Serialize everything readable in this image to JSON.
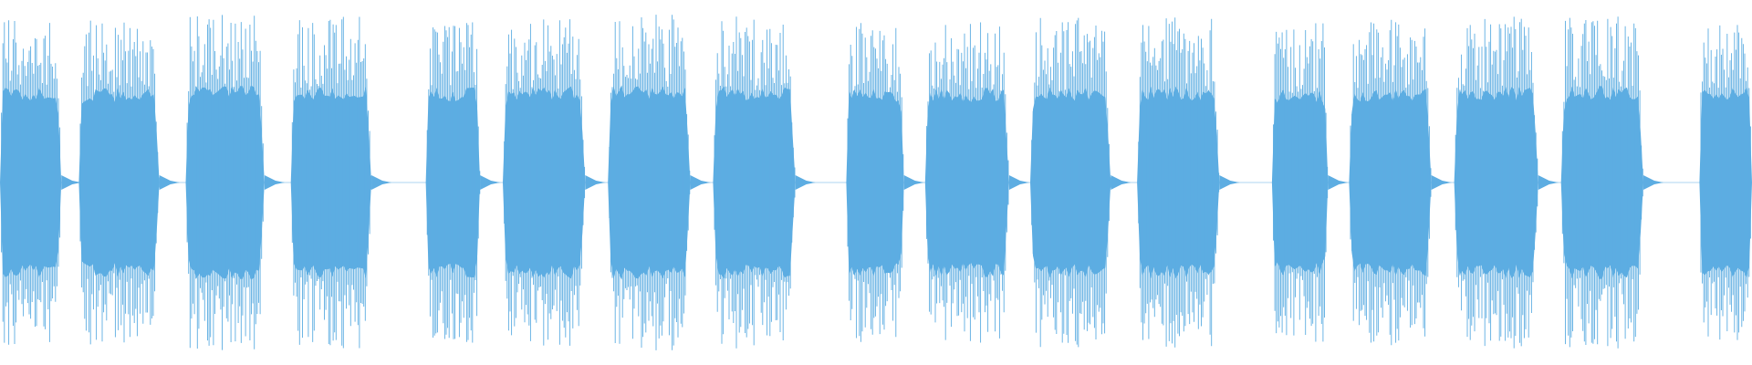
{
  "waveform": {
    "color": "#5dade2",
    "background": "#ffffff",
    "channels": 1,
    "bursts": [
      {
        "start": 0.0,
        "end": 0.035,
        "peak": 0.95
      },
      {
        "start": 0.045,
        "end": 0.091,
        "peak": 0.94
      },
      {
        "start": 0.106,
        "end": 0.151,
        "peak": 0.97
      },
      {
        "start": 0.166,
        "end": 0.212,
        "peak": 0.96
      },
      {
        "start": 0.243,
        "end": 0.274,
        "peak": 0.95
      },
      {
        "start": 0.287,
        "end": 0.334,
        "peak": 0.96
      },
      {
        "start": 0.347,
        "end": 0.394,
        "peak": 0.97
      },
      {
        "start": 0.407,
        "end": 0.454,
        "peak": 0.96
      },
      {
        "start": 0.483,
        "end": 0.516,
        "peak": 0.93
      },
      {
        "start": 0.528,
        "end": 0.576,
        "peak": 0.94
      },
      {
        "start": 0.588,
        "end": 0.634,
        "peak": 0.95
      },
      {
        "start": 0.649,
        "end": 0.696,
        "peak": 0.96
      },
      {
        "start": 0.726,
        "end": 0.758,
        "peak": 0.93
      },
      {
        "start": 0.77,
        "end": 0.817,
        "peak": 0.94
      },
      {
        "start": 0.83,
        "end": 0.878,
        "peak": 0.96
      },
      {
        "start": 0.891,
        "end": 0.938,
        "peak": 0.96
      },
      {
        "start": 0.97,
        "end": 1.0,
        "peak": 0.95
      }
    ]
  }
}
